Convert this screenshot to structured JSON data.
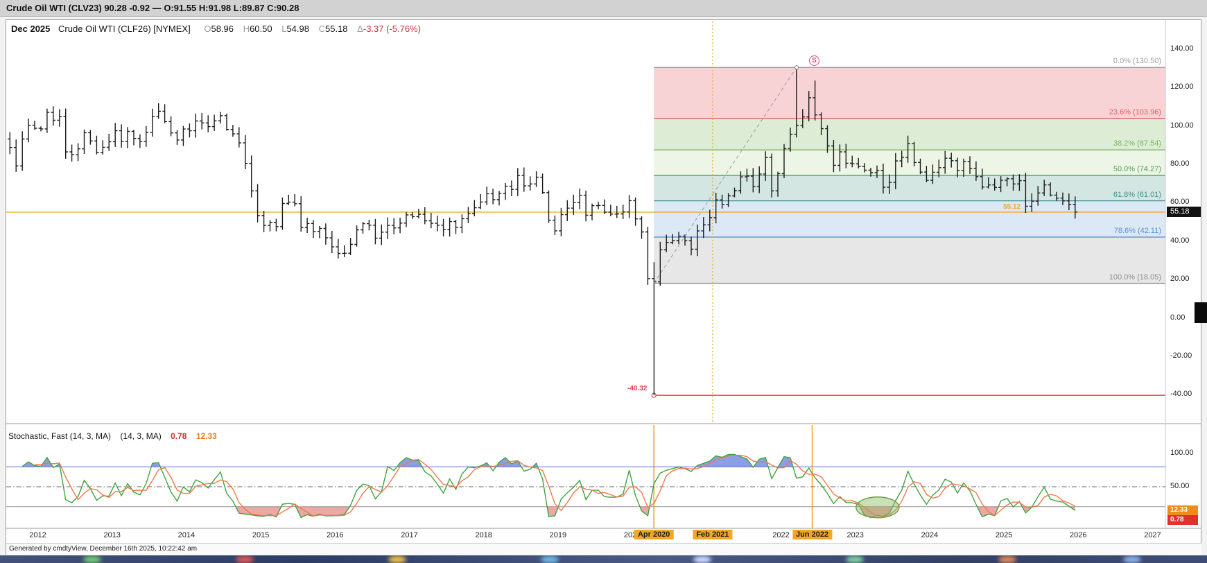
{
  "title_bar": {
    "text": "Crude Oil WTI (CLV23) 90.28 -0.92 — O:91.55 H:91.98 L:89.87 C:90.28"
  },
  "chart_header": {
    "period": "Dec 2025",
    "instrument": "Crude Oil WTI (CLF26) [NYMEX]",
    "ohlc": [
      {
        "label": "O",
        "value": "58.96"
      },
      {
        "label": "H",
        "value": "60.50"
      },
      {
        "label": "L",
        "value": "54.98"
      },
      {
        "label": "C",
        "value": "55.18"
      }
    ],
    "delta_label": "Δ",
    "delta_value": "-3.37 (-5.76%)"
  },
  "price_axis": {
    "ticks": [
      {
        "value": 140,
        "label": "140.00"
      },
      {
        "value": 120,
        "label": "120.00"
      },
      {
        "value": 100,
        "label": "100.00"
      },
      {
        "value": 80,
        "label": "80.00"
      },
      {
        "value": 60,
        "label": "60.00"
      },
      {
        "value": 40,
        "label": "40.00"
      },
      {
        "value": 20,
        "label": "20.00"
      },
      {
        "value": 0,
        "label": "0.00"
      },
      {
        "value": -20,
        "label": "-20.00"
      },
      {
        "value": -40,
        "label": "-40.00"
      }
    ],
    "current_price_box": "55.18"
  },
  "x_axis": {
    "years": [
      {
        "year": 2012,
        "label": "2012"
      },
      {
        "year": 2013,
        "label": "2013"
      },
      {
        "year": 2014,
        "label": "2014"
      },
      {
        "year": 2015,
        "label": "2015"
      },
      {
        "year": 2016,
        "label": "2016"
      },
      {
        "year": 2017,
        "label": "2017"
      },
      {
        "year": 2018,
        "label": "2018"
      },
      {
        "year": 2019,
        "label": "2019"
      },
      {
        "year": 2020,
        "label": "2020"
      },
      {
        "year": 2021,
        "label": "2021"
      },
      {
        "year": 2022,
        "label": "2022"
      },
      {
        "year": 2023,
        "label": "2023"
      },
      {
        "year": 2024,
        "label": "2024"
      },
      {
        "year": 2025,
        "label": "2025"
      },
      {
        "year": 2026,
        "label": "2026"
      },
      {
        "year": 2027,
        "label": "2027"
      }
    ],
    "highlighted_dates": [
      {
        "label": "Apr 2020",
        "year_frac": 2020.29
      },
      {
        "label": "Feb 2021",
        "year_frac": 2021.08
      },
      {
        "label": "Jun 2022",
        "year_frac": 2022.42
      }
    ]
  },
  "fibonacci": {
    "start_year_frac": 2020.29,
    "levels": [
      {
        "label": "0.0% (130.50)",
        "price": 130.5,
        "color": "#9e9e9e"
      },
      {
        "label": "23.6% (103.96)",
        "price": 103.96,
        "color": "#e05c5c"
      },
      {
        "label": "38.2% (87.54)",
        "price": 87.54,
        "color": "#7cb567"
      },
      {
        "label": "50.0% (74.27)",
        "price": 74.27,
        "color": "#4f9e57"
      },
      {
        "label": "61.8% (61.01)",
        "price": 61.01,
        "color": "#3f8f8a"
      },
      {
        "label": "78.6% (42.11)",
        "price": 42.11,
        "color": "#5b8fd0"
      },
      {
        "label": "100.0% (18.05)",
        "price": 18.05,
        "color": "#8f8f8f"
      }
    ],
    "zone_fills": [
      "rgba(228,110,115,0.30)",
      "rgba(150,200,125,0.32)",
      "rgba(196,224,176,0.32)",
      "rgba(120,178,165,0.32)",
      "rgba(150,188,230,0.34)",
      "rgba(180,180,180,0.32)"
    ],
    "trend_line": {
      "from_year_frac": 2020.29,
      "from_price": 18.05,
      "to_year_frac": 2022.21,
      "to_price": 130.5
    },
    "marker": "S"
  },
  "annotations": {
    "low_line": {
      "price": -40.32,
      "label": "-40.32",
      "color": "#e23b4e",
      "start_year_frac": 2020.29
    },
    "last_price_line": {
      "price": 55.12,
      "label": "55.12",
      "color": "#f5a623"
    },
    "vline_dotted": {
      "year_frac": 2021.08,
      "color": "#f5a623"
    }
  },
  "stochastic": {
    "title": "Stochastic, Fast (14, 3, MA)",
    "params": "(14, 3, MA)",
    "value_red": "0.78",
    "value_orange": "12.33",
    "axis_ticks": [
      {
        "value": 100,
        "label": "100.00"
      },
      {
        "value": 50,
        "label": "50.00"
      }
    ],
    "value_boxes": [
      {
        "label": "12.33",
        "color": "#f28b1e"
      },
      {
        "label": "0.78",
        "color": "#e03131"
      }
    ],
    "ref_levels": {
      "upper": 80,
      "mid": 50,
      "lower": 20
    },
    "vlines_year_frac": [
      2020.29,
      2022.42
    ],
    "highlight_ellipse": {
      "year_frac": 2023.3,
      "value": 19
    },
    "colors": {
      "k_line": "#3fa33f",
      "d_line": "#f07848",
      "upper_fill": "#4f6bd8",
      "lower_fill": "#e05c5c"
    }
  },
  "footer": {
    "text": "Generated by cmdtyView, December 16th 2025, 10:22:42 am"
  },
  "chart_data": {
    "type": "ohlc-bar",
    "title": "Dec 2025 Crude Oil WTI (CLF26) monthly bars",
    "interval": "monthly",
    "x_start": {
      "year": 2011,
      "month": 8
    },
    "x_range": [
      2011.5,
      2027
    ],
    "ylim": [
      -55,
      147
    ],
    "closes": [
      88.8,
      79.2,
      93.2,
      100.4,
      98.8,
      98.5,
      107.1,
      103.0,
      104.9,
      86.5,
      85.0,
      88.1,
      96.5,
      92.2,
      86.2,
      88.9,
      91.8,
      97.5,
      92.0,
      97.2,
      93.5,
      91.9,
      96.6,
      105.0,
      107.7,
      102.3,
      96.4,
      92.7,
      98.4,
      97.5,
      102.6,
      101.6,
      99.7,
      102.7,
      105.4,
      98.2,
      95.9,
      91.2,
      80.5,
      66.2,
      53.3,
      48.2,
      49.8,
      47.6,
      59.6,
      60.3,
      59.5,
      47.1,
      49.2,
      45.1,
      46.6,
      41.7,
      37.0,
      33.6,
      33.7,
      38.3,
      45.9,
      49.1,
      48.3,
      41.6,
      44.7,
      48.2,
      46.9,
      49.4,
      53.7,
      52.8,
      54.0,
      50.6,
      49.3,
      48.3,
      46.0,
      50.2,
      47.1,
      51.7,
      54.4,
      57.4,
      60.4,
      64.7,
      61.6,
      64.9,
      68.6,
      67.0,
      74.2,
      68.8,
      69.8,
      73.3,
      65.3,
      50.9,
      45.4,
      53.8,
      57.2,
      60.1,
      63.9,
      53.5,
      58.5,
      58.6,
      55.1,
      54.1,
      54.2,
      55.2,
      61.1,
      51.6,
      44.8,
      20.5,
      18.8,
      35.5,
      39.3,
      40.3,
      42.6,
      40.2,
      35.8,
      45.3,
      48.5,
      52.2,
      61.5,
      59.2,
      63.6,
      66.3,
      73.5,
      73.9,
      68.5,
      75.0,
      83.6,
      66.2,
      75.2,
      88.2,
      95.7,
      100.3,
      104.7,
      114.7,
      105.8,
      98.6,
      89.6,
      79.5,
      86.5,
      80.6,
      80.3,
      78.9,
      77.0,
      75.7,
      76.8,
      68.1,
      70.6,
      81.8,
      83.6,
      90.8,
      81.0,
      76.0,
      71.7,
      75.9,
      78.3,
      83.2,
      81.9,
      76.9,
      81.5,
      77.9,
      73.6,
      68.2,
      69.3,
      68.0,
      71.7,
      72.5,
      69.8,
      71.5,
      58.2,
      60.8,
      65.1,
      69.3,
      64.0,
      62.4,
      61.0,
      59.1,
      55.18
    ],
    "bar_overrides": {
      "104": {
        "low": -40.32,
        "high": 29
      },
      "127": {
        "high": 130.5,
        "low": 94
      },
      "130": {
        "high": 123.7
      },
      "145": {
        "high": 95
      }
    }
  }
}
